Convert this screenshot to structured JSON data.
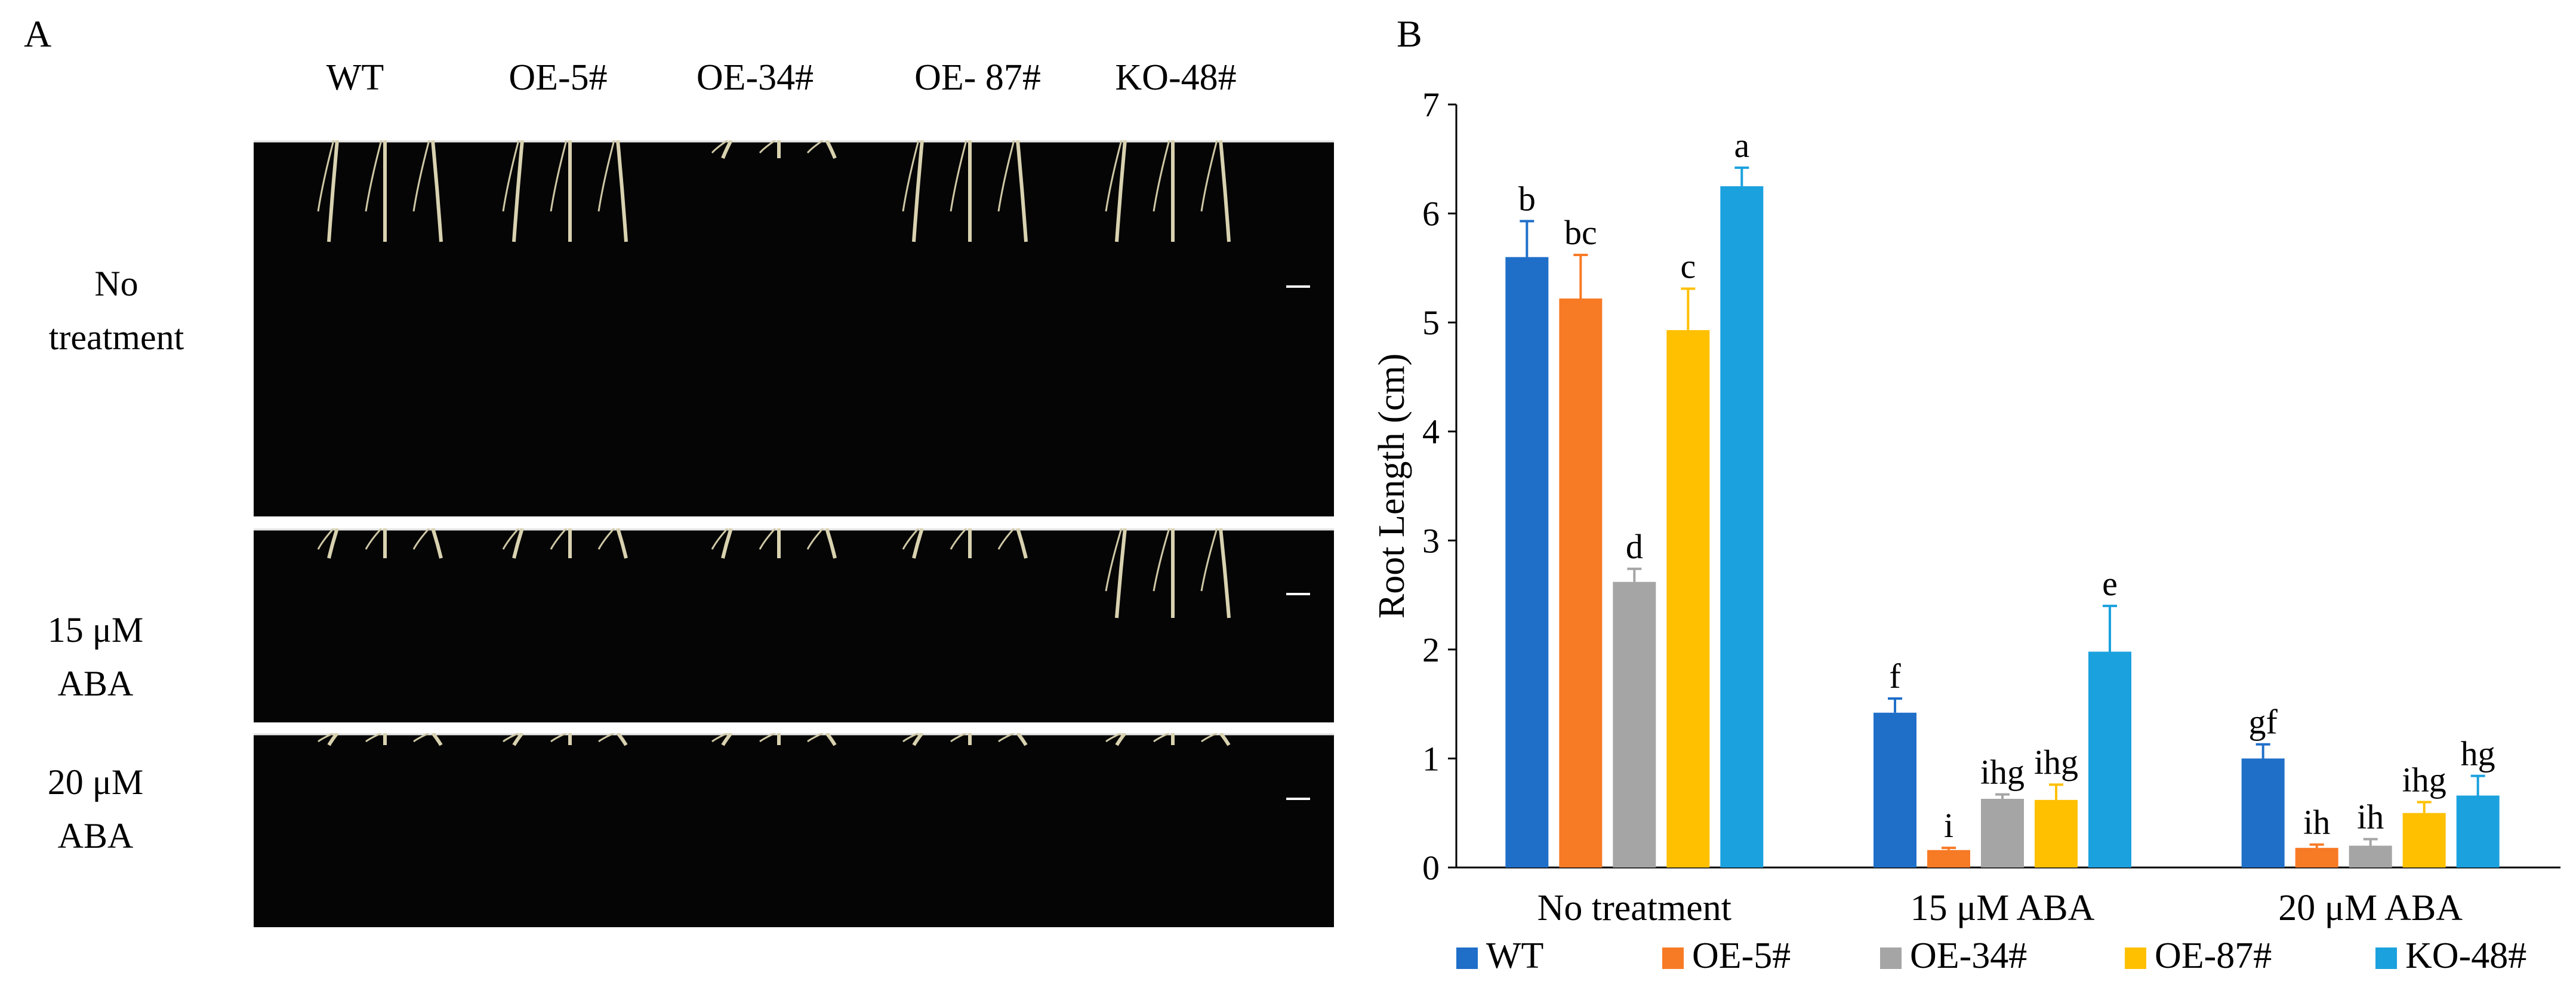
{
  "panelA": {
    "letter": "A",
    "genotypes": [
      "WT",
      "OE-5#",
      "OE-34#",
      "OE- 87#",
      "KO-48#"
    ],
    "rows": [
      {
        "line1": "No",
        "line2": "treatment"
      },
      {
        "line1": "15 μM",
        "line2": "ABA"
      },
      {
        "line1": "20 μM",
        "line2": "ABA"
      }
    ]
  },
  "panelB": {
    "letter": "B"
  },
  "chart_data": {
    "type": "bar",
    "title": "",
    "xlabel": "",
    "ylabel": "Root Length (cm)",
    "ylim": [
      0,
      7
    ],
    "yticks": [
      0,
      1,
      2,
      3,
      4,
      5,
      6,
      7
    ],
    "grid": false,
    "legend": "bottom",
    "categories": [
      "No  treatment",
      "15 μM ABA",
      "20 μM ABA"
    ],
    "series": [
      {
        "name": "WT",
        "color": "#1F6FC9",
        "values": [
          5.6,
          1.42,
          1.0
        ],
        "errors": [
          0.33,
          0.13,
          0.13
        ],
        "letters": [
          "b",
          "f",
          "gf"
        ]
      },
      {
        "name": "OE-5#",
        "color": "#F77A25",
        "values": [
          5.22,
          0.16,
          0.18
        ],
        "errors": [
          0.4,
          0.02,
          0.03
        ],
        "letters": [
          "bc",
          "i",
          "ih"
        ]
      },
      {
        "name": "OE-34#",
        "color": "#A5A5A5",
        "values": [
          2.62,
          0.63,
          0.2
        ],
        "errors": [
          0.12,
          0.04,
          0.06
        ],
        "letters": [
          "d",
          "ihg",
          "ih"
        ]
      },
      {
        "name": "OE-87#",
        "color": "#FFC000",
        "values": [
          4.93,
          0.62,
          0.5
        ],
        "errors": [
          0.38,
          0.14,
          0.1
        ],
        "letters": [
          "c",
          "ihg",
          "ihg"
        ]
      },
      {
        "name": "KO-48#",
        "color": "#1BA1DE",
        "values": [
          6.25,
          1.98,
          0.66
        ],
        "errors": [
          0.17,
          0.42,
          0.18
        ],
        "letters": [
          "a",
          "e",
          "hg"
        ]
      }
    ]
  }
}
